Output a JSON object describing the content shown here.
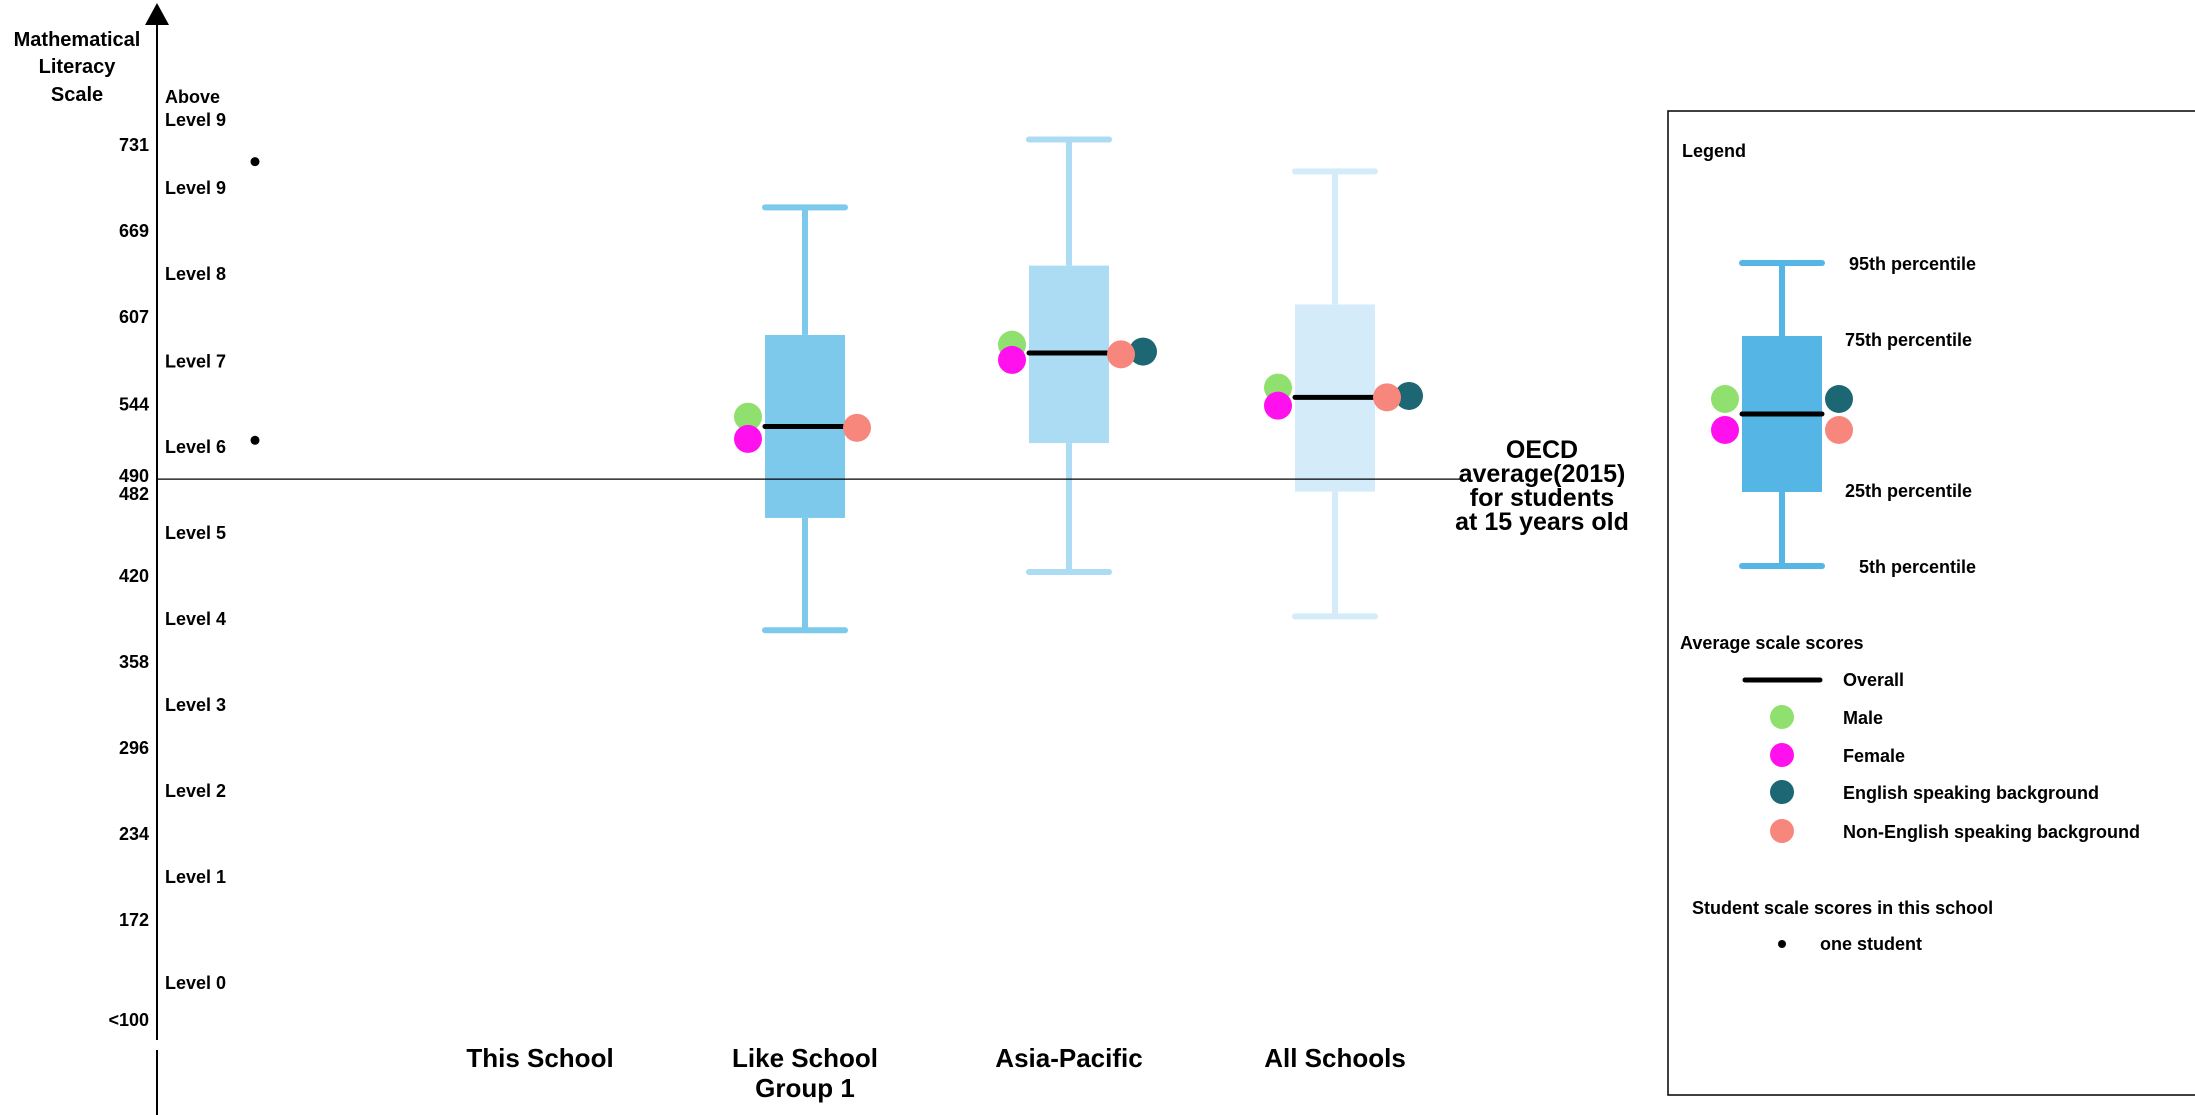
{
  "chart_data": {
    "type": "boxplot",
    "ylabel": [
      "Mathematical",
      "Literacy",
      "Scale"
    ],
    "y_ticks": [
      {
        "value": 731,
        "label": "731"
      },
      {
        "value": 669,
        "label": "669"
      },
      {
        "value": 607,
        "label": "607"
      },
      {
        "value": 544,
        "label": "544"
      },
      {
        "value": 490,
        "label": "490"
      },
      {
        "value": 482,
        "label": "482"
      },
      {
        "value": 420,
        "label": "420"
      },
      {
        "value": 358,
        "label": "358"
      },
      {
        "value": 296,
        "label": "296"
      },
      {
        "value": 234,
        "label": "234"
      },
      {
        "value": 172,
        "label": "172"
      },
      {
        "value": 100,
        "label": "<100"
      }
    ],
    "levels": [
      {
        "lines": [
          "Above",
          "Level 9"
        ],
        "value": 762
      },
      {
        "lines": [
          "Level 9"
        ],
        "value": 700
      },
      {
        "lines": [
          "Level 8"
        ],
        "value": 638
      },
      {
        "lines": [
          "Level 7"
        ],
        "value": 575
      },
      {
        "lines": [
          "Level 6"
        ],
        "value": 513
      },
      {
        "lines": [
          "Level 5"
        ],
        "value": 451
      },
      {
        "lines": [
          "Level 4"
        ],
        "value": 389
      },
      {
        "lines": [
          "Level 3"
        ],
        "value": 327
      },
      {
        "lines": [
          "Level 2"
        ],
        "value": 265
      },
      {
        "lines": [
          "Level 1"
        ],
        "value": 203
      },
      {
        "lines": [
          "Level 0"
        ],
        "value": 131
      }
    ],
    "reference_line": {
      "value": 490,
      "label": [
        "OECD",
        "average(2015)",
        "for students",
        "at 15 years old"
      ]
    },
    "categories": [
      {
        "lines": [
          "This School"
        ],
        "box": null
      },
      {
        "lines": [
          "Like School",
          "Group 1"
        ],
        "box": {
          "p5": 381,
          "p25": 462,
          "median": 528,
          "p75": 594,
          "p95": 686,
          "color": "#7dc9ec"
        },
        "scores": {
          "male": 535,
          "female": 519,
          "english": null,
          "non_english": 527
        }
      },
      {
        "lines": [
          "Asia-Pacific"
        ],
        "box": {
          "p5": 423,
          "p25": 516,
          "median": 581,
          "p75": 644,
          "p95": 735,
          "color": "#abdcf4"
        },
        "scores": {
          "male": 587,
          "female": 576,
          "english": 582,
          "non_english": 580
        }
      },
      {
        "lines": [
          "All Schools"
        ],
        "box": {
          "p5": 391,
          "p25": 481,
          "median": 549,
          "p75": 616,
          "p95": 712,
          "color": "#d4ecf9"
        },
        "scores": {
          "male": 556,
          "female": 543,
          "english": 550,
          "non_english": 549
        }
      }
    ],
    "students": [
      {
        "value": 719
      },
      {
        "value": 518
      }
    ],
    "ylim": [
      100,
      790
    ],
    "grid": false,
    "legend_position": "right"
  },
  "legend": {
    "title": "Legend",
    "box_color": "#55b6e6",
    "p95": "95th percentile",
    "p75": "75th percentile",
    "p25": "25th percentile",
    "p5": "5th percentile",
    "avg_title": "Average scale scores",
    "overall": "Overall",
    "male": "Male",
    "female": "Female",
    "english": "English speaking background",
    "non_english": "Non-English speaking background",
    "students_title": "Student scale scores in this school",
    "one_student": "one student"
  },
  "colors": {
    "male": "#8fe06e",
    "female": "#ff11ee",
    "english": "#1d6674",
    "non_english": "#f7867c"
  }
}
